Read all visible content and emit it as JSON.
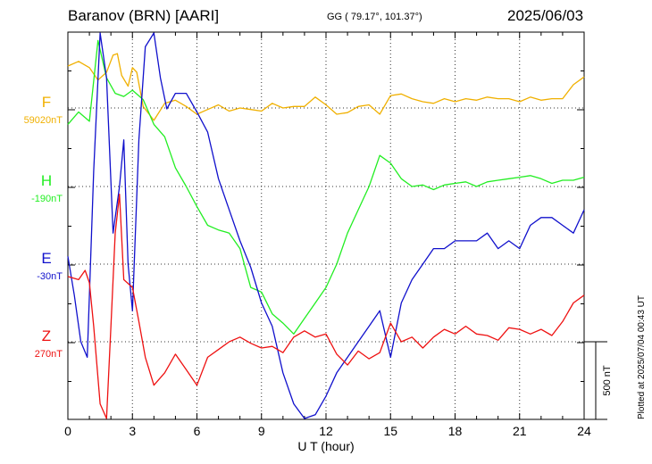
{
  "header": {
    "station": "Baranov (BRN)  [AARI]",
    "coords": "GG ( 79.17°, 101.37°)",
    "date": "2025/06/03"
  },
  "footer": {
    "plotted": "Plotted at 2025/07/04 00:43 UT"
  },
  "chart_data": {
    "type": "line",
    "title": "",
    "xlabel": "U T (hour)",
    "xlim": [
      0,
      24
    ],
    "xticks": [
      0,
      3,
      6,
      9,
      12,
      15,
      18,
      21,
      24
    ],
    "xtick_labels": [
      "0",
      "3",
      "6",
      "9",
      "12",
      "15",
      "18",
      "21",
      "24"
    ],
    "grid": true,
    "scale_bar": {
      "label": "500 nT",
      "value_nT": 500
    },
    "series": [
      {
        "name": "F",
        "baseline": "59020nT",
        "color": "#f0b000",
        "x": [
          0,
          0.5,
          1.0,
          1.4,
          1.8,
          2.1,
          2.3,
          2.5,
          2.8,
          3.0,
          3.2,
          3.5,
          4.0,
          4.5,
          5.0,
          5.5,
          6.0,
          6.5,
          7.0,
          7.5,
          8.0,
          8.5,
          9.0,
          9.5,
          10.0,
          10.5,
          11.0,
          11.5,
          12.0,
          12.5,
          13.0,
          13.5,
          14.0,
          14.5,
          15.0,
          15.5,
          16.0,
          16.5,
          17.0,
          17.5,
          18.0,
          18.5,
          19.0,
          19.5,
          20.0,
          20.5,
          21.0,
          21.5,
          22.0,
          22.5,
          23.0,
          23.5,
          24.0
        ],
        "y": [
          270,
          300,
          260,
          180,
          230,
          340,
          350,
          210,
          140,
          260,
          230,
          10,
          -80,
          30,
          50,
          10,
          -40,
          -10,
          20,
          -20,
          0,
          -10,
          -20,
          30,
          0,
          10,
          10,
          70,
          20,
          -40,
          -30,
          10,
          20,
          -40,
          80,
          90,
          60,
          40,
          30,
          60,
          40,
          60,
          50,
          70,
          60,
          60,
          40,
          70,
          50,
          60,
          60,
          150,
          200
        ]
      },
      {
        "name": "H",
        "baseline": "-190nT",
        "color": "#22ee22",
        "x": [
          0,
          0.5,
          1.0,
          1.4,
          1.8,
          2.2,
          2.6,
          3.0,
          3.5,
          4.0,
          4.5,
          5.0,
          5.5,
          6.0,
          6.5,
          7.0,
          7.5,
          8.0,
          8.5,
          9.0,
          9.5,
          10.0,
          10.5,
          11.0,
          11.5,
          12.0,
          12.5,
          13.0,
          13.5,
          14.0,
          14.5,
          15.0,
          15.5,
          16.0,
          16.5,
          17.0,
          17.5,
          18.0,
          18.5,
          19.0,
          19.5,
          20.0,
          20.5,
          21.0,
          21.5,
          22.0,
          22.5,
          23.0,
          23.5,
          24.0
        ],
        "y": [
          400,
          480,
          420,
          940,
          700,
          600,
          580,
          620,
          560,
          400,
          320,
          120,
          0,
          -130,
          -250,
          -280,
          -300,
          -400,
          -650,
          -680,
          -820,
          -880,
          -950,
          -850,
          -750,
          -650,
          -500,
          -300,
          -150,
          0,
          200,
          150,
          50,
          0,
          10,
          -20,
          10,
          20,
          30,
          0,
          30,
          40,
          50,
          60,
          70,
          50,
          20,
          40,
          40,
          60
        ]
      },
      {
        "name": "E",
        "baseline": "-30nT",
        "color": "#1010cc",
        "x": [
          0,
          0.3,
          0.6,
          0.9,
          1.2,
          1.5,
          1.8,
          2.1,
          2.4,
          2.6,
          2.8,
          3.0,
          3.3,
          3.6,
          4.0,
          4.3,
          4.6,
          5.0,
          5.5,
          6.0,
          6.5,
          7.0,
          7.5,
          8.0,
          8.5,
          9.0,
          9.5,
          10.0,
          10.5,
          11.0,
          11.5,
          12.0,
          12.5,
          13.0,
          13.5,
          14.0,
          14.5,
          15.0,
          15.5,
          16.0,
          16.5,
          17.0,
          17.5,
          18.0,
          18.5,
          19.0,
          19.5,
          20.0,
          20.5,
          21.0,
          21.5,
          22.0,
          22.5,
          23.0,
          23.5,
          24.0
        ],
        "y": [
          50,
          -200,
          -500,
          -600,
          600,
          1800,
          1200,
          200,
          500,
          800,
          0,
          -300,
          800,
          1400,
          1600,
          1200,
          1000,
          1100,
          1100,
          980,
          850,
          550,
          350,
          150,
          -20,
          -250,
          -400,
          -700,
          -900,
          -1000,
          -970,
          -850,
          -700,
          -600,
          -500,
          -400,
          -300,
          -600,
          -250,
          -100,
          0,
          100,
          100,
          150,
          150,
          150,
          200,
          100,
          150,
          100,
          250,
          300,
          300,
          250,
          200,
          350
        ]
      },
      {
        "name": "Z",
        "baseline": "270nT",
        "color": "#ee1111",
        "x": [
          0,
          0.5,
          0.8,
          1.0,
          1.2,
          1.5,
          1.8,
          2.0,
          2.2,
          2.4,
          2.6,
          3.0,
          3.3,
          3.6,
          4.0,
          4.5,
          5.0,
          5.5,
          6.0,
          6.5,
          7.0,
          7.5,
          8.0,
          8.5,
          9.0,
          9.5,
          10.0,
          10.5,
          11.0,
          11.5,
          12.0,
          12.5,
          13.0,
          13.5,
          14.0,
          14.5,
          15.0,
          15.5,
          16.0,
          16.5,
          17.0,
          17.5,
          18.0,
          18.5,
          19.0,
          19.5,
          20.0,
          20.5,
          21.0,
          21.5,
          22.0,
          22.5,
          23.0,
          23.5,
          24.0
        ],
        "y": [
          420,
          400,
          460,
          380,
          100,
          -400,
          -500,
          100,
          700,
          950,
          400,
          350,
          130,
          -100,
          -280,
          -200,
          -80,
          -180,
          -280,
          -100,
          -50,
          0,
          30,
          -10,
          -40,
          -30,
          -70,
          30,
          70,
          30,
          50,
          -80,
          -150,
          -60,
          -110,
          -70,
          120,
          0,
          30,
          -40,
          30,
          80,
          50,
          100,
          50,
          40,
          10,
          90,
          80,
          50,
          80,
          40,
          130,
          250,
          300
        ]
      }
    ]
  }
}
